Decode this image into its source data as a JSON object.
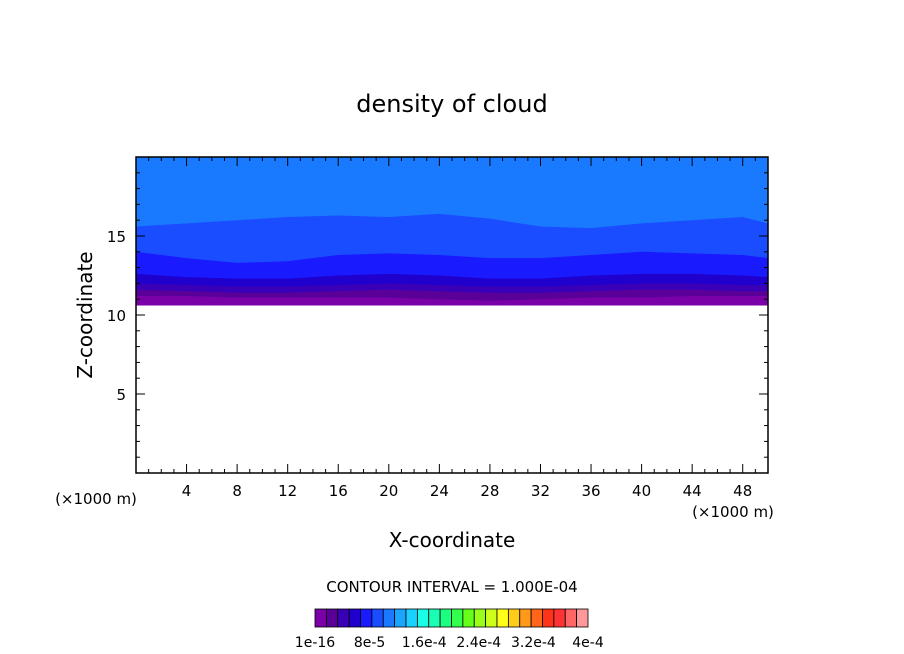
{
  "chart_data": {
    "type": "heatmap",
    "title": "density of cloud",
    "xlabel": "X-coordinate",
    "ylabel": "Z-coordinate",
    "x_unit": "(×1000 m)",
    "x_unit_right": "(×1000 m)",
    "xlim": [
      0,
      50
    ],
    "ylim": [
      0,
      20
    ],
    "x_ticks": [
      4,
      8,
      12,
      16,
      20,
      24,
      28,
      32,
      36,
      40,
      44,
      48
    ],
    "y_ticks": [
      5,
      10,
      15
    ],
    "contour_interval": "CONTOUR INTERVAL = 1.000E-04",
    "colorbar": {
      "labels": [
        "1e-16",
        "8e-5",
        "1.6e-4",
        "2.4e-4",
        "3.2e-4",
        "4e-4"
      ],
      "colors": [
        "#7a00a8",
        "#5a0099",
        "#3a00b8",
        "#2000cc",
        "#1a1aff",
        "#1a4dff",
        "#1a7aff",
        "#1aa6ff",
        "#1ad2ff",
        "#1affe6",
        "#1affb3",
        "#1aff80",
        "#33ff4d",
        "#66ff1a",
        "#99ff1a",
        "#ccff1a",
        "#ffff1a",
        "#ffcc1a",
        "#ff991a",
        "#ff661a",
        "#ff331a",
        "#ff3333",
        "#ff6666",
        "#ff9999"
      ]
    },
    "field": {
      "cloud_base_z": 10.6,
      "cloud_top_z": 20,
      "layers": [
        {
          "level_index": 0,
          "color": "#7a00a8",
          "z_top": [
            11.2,
            11.2,
            11.1,
            11.1,
            11.1,
            11.1,
            11.0,
            10.9,
            11.0,
            11.1,
            11.1,
            11.2,
            11.2,
            11.2
          ]
        },
        {
          "level_index": 1,
          "color": "#5a0099",
          "z_top": [
            11.6,
            11.5,
            11.4,
            11.4,
            11.5,
            11.6,
            11.5,
            11.4,
            11.4,
            11.5,
            11.6,
            11.6,
            11.5,
            11.5
          ]
        },
        {
          "level_index": 2,
          "color": "#3a00b8",
          "z_top": [
            12.0,
            11.9,
            11.8,
            11.8,
            11.9,
            12.0,
            11.9,
            11.8,
            11.8,
            11.9,
            12.0,
            12.0,
            11.9,
            11.9
          ]
        },
        {
          "level_index": 3,
          "color": "#2000cc",
          "z_top": [
            12.6,
            12.4,
            12.3,
            12.3,
            12.5,
            12.6,
            12.5,
            12.3,
            12.3,
            12.5,
            12.6,
            12.6,
            12.5,
            12.4
          ]
        },
        {
          "level_index": 4,
          "color": "#1a1aff",
          "z_top": [
            14.0,
            13.6,
            13.3,
            13.4,
            13.8,
            13.9,
            13.8,
            13.6,
            13.6,
            13.8,
            14.0,
            13.9,
            13.8,
            13.6
          ]
        },
        {
          "level_index": 5,
          "color": "#1a4dff",
          "z_top": [
            15.6,
            15.8,
            16.0,
            16.2,
            16.3,
            16.2,
            16.4,
            16.1,
            15.6,
            15.5,
            15.8,
            16.0,
            16.2,
            15.8
          ]
        },
        {
          "level_index": 6,
          "color": "#1a7aff",
          "z_top": [
            20,
            20,
            20,
            20,
            20,
            20,
            20,
            20,
            20,
            20,
            20,
            20,
            20,
            20
          ]
        }
      ],
      "x_samples": [
        0,
        4,
        8,
        12,
        16,
        20,
        24,
        28,
        32,
        36,
        40,
        44,
        48,
        50
      ]
    }
  }
}
